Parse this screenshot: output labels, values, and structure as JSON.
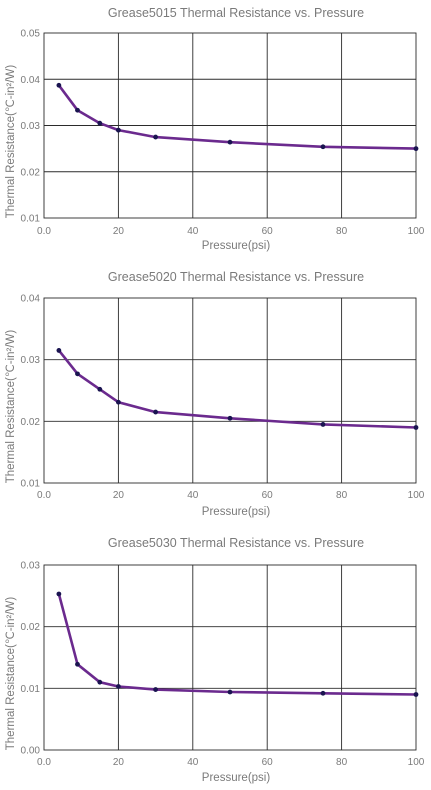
{
  "chart_data": [
    {
      "type": "line",
      "title": "Grease5015 Thermal Resistance vs. Pressure",
      "xlabel": "Pressure(psi)",
      "ylabel": "Thermal Resistance(℃-in²/W)",
      "xlim": [
        0,
        100
      ],
      "ylim": [
        0.01,
        0.05
      ],
      "xticks": [
        "0.0",
        "20",
        "40",
        "60",
        "80",
        "100"
      ],
      "yticks": [
        "0.01",
        "0.02",
        "0.03",
        "0.04",
        "0.05"
      ],
      "grid": true,
      "colors": {
        "line": "#6b2a8e",
        "marker": "#1a1450"
      },
      "x": [
        4,
        9,
        15,
        20,
        30,
        50,
        75,
        100
      ],
      "y": [
        0.0387,
        0.0333,
        0.0305,
        0.029,
        0.0275,
        0.0264,
        0.0254,
        0.025
      ]
    },
    {
      "type": "line",
      "title": "Grease5020 Thermal Resistance vs. Pressure",
      "xlabel": "Pressure(psi)",
      "ylabel": "Thermal Resistance(℃-in²/W)",
      "xlim": [
        0,
        100
      ],
      "ylim": [
        0.01,
        0.04
      ],
      "xticks": [
        "0.0",
        "20",
        "40",
        "60",
        "80",
        "100"
      ],
      "yticks": [
        "0.01",
        "0.02",
        "0.03",
        "0.04"
      ],
      "grid": true,
      "colors": {
        "line": "#6b2a8e",
        "marker": "#1a1450"
      },
      "x": [
        4,
        9,
        15,
        20,
        30,
        50,
        75,
        100
      ],
      "y": [
        0.0315,
        0.0277,
        0.0252,
        0.0231,
        0.0215,
        0.0205,
        0.0195,
        0.019
      ]
    },
    {
      "type": "line",
      "title": "Grease5030 Thermal Resistance vs. Pressure",
      "xlabel": "Pressure(psi)",
      "ylabel": "Thermal Resistance(℃-in²/W)",
      "xlim": [
        0,
        100
      ],
      "ylim": [
        0.0,
        0.03
      ],
      "xticks": [
        "0.0",
        "20",
        "40",
        "60",
        "80",
        "100"
      ],
      "yticks": [
        "0.00",
        "0.01",
        "0.02",
        "0.03"
      ],
      "grid": true,
      "colors": {
        "line": "#6b2a8e",
        "marker": "#1a1450"
      },
      "x": [
        4,
        9,
        15,
        20,
        30,
        50,
        75,
        100
      ],
      "y": [
        0.0253,
        0.0139,
        0.011,
        0.0103,
        0.0098,
        0.0094,
        0.0092,
        0.009
      ]
    }
  ]
}
